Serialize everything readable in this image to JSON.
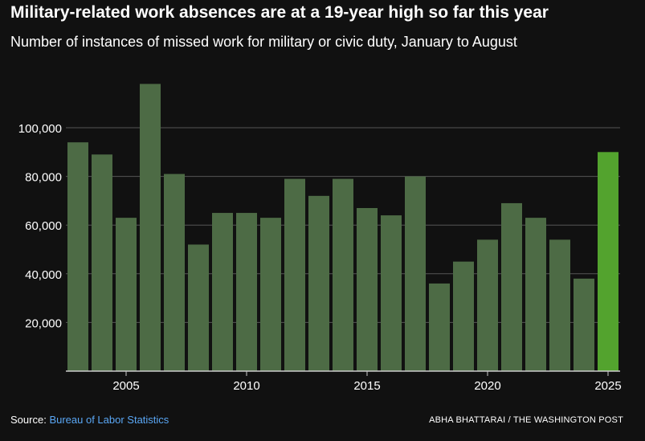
{
  "title": "Military-related work absences are at a 19-year high so far this year",
  "subtitle": "Number of instances of missed work for military or civic duty, January to August",
  "footer": {
    "source_prefix": "Source:",
    "source_name": "Bureau of Labor Statistics",
    "credit": "ABHA BHATTARAI / THE WASHINGTON POST"
  },
  "colors": {
    "background": "#111111",
    "bar": "#4d6b45",
    "highlight_bar": "#53a32e",
    "grid": "#555555",
    "axis": "#cccccc",
    "link": "#5aa7f5"
  },
  "chart_data": {
    "type": "bar",
    "title": "Military-related work absences are at a 19-year high so far this year",
    "subtitle": "Number of instances of missed work for military or civic duty, January to August",
    "categories": [
      2003,
      2004,
      2005,
      2006,
      2007,
      2008,
      2009,
      2010,
      2011,
      2012,
      2013,
      2014,
      2015,
      2016,
      2017,
      2018,
      2019,
      2020,
      2021,
      2022,
      2023,
      2024,
      2025
    ],
    "values": [
      94000,
      89000,
      63000,
      118000,
      81000,
      52000,
      65000,
      65000,
      63000,
      79000,
      72000,
      79000,
      67000,
      64000,
      80000,
      36000,
      45000,
      54000,
      69000,
      63000,
      54000,
      38000,
      90000
    ],
    "highlight": [
      2025
    ],
    "xticks": [
      2005,
      2010,
      2015,
      2020,
      2025
    ],
    "xtick_labels": [
      "2005",
      "2010",
      "2015",
      "2020",
      "2025"
    ],
    "yticks": [
      20000,
      40000,
      60000,
      80000,
      100000
    ],
    "ytick_labels": [
      "20,000",
      "40,000",
      "60,000",
      "80,000",
      "100,000"
    ],
    "ylim": [
      0,
      120000
    ],
    "xlabel": "",
    "ylabel": "",
    "grid": true
  }
}
